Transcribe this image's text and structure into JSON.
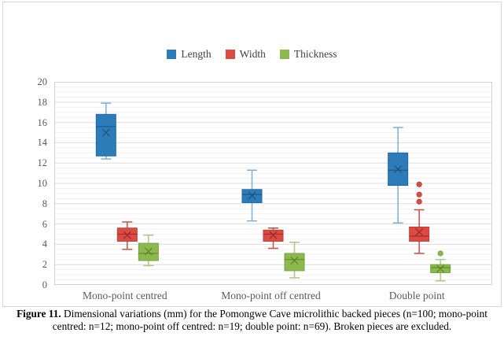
{
  "figure": {
    "caption_prefix": "Figure 11.",
    "caption_body": "Dimensional variations (mm) for the Pomongwe Cave microlithic backed pieces (n=100; mono-point centred: n=12; mono-point off centred: n=19; double point: n=69). Broken pieces are excluded."
  },
  "chart_data": {
    "type": "boxplot",
    "title": "",
    "xlabel": "",
    "ylabel": "",
    "categories": [
      "Mono-point centred",
      "Mono-point off centred",
      "Double point"
    ],
    "ylim": [
      0,
      20
    ],
    "y_ticks": [
      0,
      2,
      4,
      6,
      8,
      10,
      12,
      14,
      16,
      18,
      20
    ],
    "y_minor_step": 0.5,
    "grid": "horizontal major + minor",
    "legend_position": "top-center",
    "series": [
      {
        "name": "Length",
        "fill": "#2c7cba",
        "border": "#2368a2",
        "whisker": "#7fafd1",
        "accent": "#1d4f75",
        "boxes": [
          {
            "whisker_low": 12.4,
            "q1": 12.7,
            "median": 15.6,
            "q3": 16.8,
            "whisker_high": 17.9,
            "mean": 15.0,
            "outliers": []
          },
          {
            "whisker_low": 6.3,
            "q1": 8.1,
            "median": 8.9,
            "q3": 9.4,
            "whisker_high": 11.3,
            "mean": 8.8,
            "outliers": []
          },
          {
            "whisker_low": 6.1,
            "q1": 9.8,
            "median": 11.3,
            "q3": 13.0,
            "whisker_high": 15.5,
            "mean": 11.4,
            "outliers": []
          }
        ]
      },
      {
        "name": "Width",
        "fill": "#dd4a44",
        "border": "#bf3e3a",
        "whisker": "#c4504b",
        "accent": "#8f2a26",
        "boxes": [
          {
            "whisker_low": 3.5,
            "q1": 4.3,
            "median": 5.0,
            "q3": 5.6,
            "whisker_high": 6.2,
            "mean": 4.9,
            "outliers": []
          },
          {
            "whisker_low": 3.6,
            "q1": 4.3,
            "median": 5.0,
            "q3": 5.4,
            "whisker_high": 5.6,
            "mean": 4.9,
            "outliers": []
          },
          {
            "whisker_low": 3.1,
            "q1": 4.3,
            "median": 4.8,
            "q3": 5.7,
            "whisker_high": 7.4,
            "mean": 5.2,
            "outliers": [
              8.2,
              8.9,
              9.9
            ]
          }
        ]
      },
      {
        "name": "Thickness",
        "fill": "#8bb94e",
        "border": "#79a23f",
        "whisker": "#abc786",
        "accent": "#5c7e2d",
        "boxes": [
          {
            "whisker_low": 1.9,
            "q1": 2.4,
            "median": 3.1,
            "q3": 4.1,
            "whisker_high": 4.9,
            "mean": 3.3,
            "outliers": []
          },
          {
            "whisker_low": 0.7,
            "q1": 1.4,
            "median": 2.5,
            "q3": 3.1,
            "whisker_high": 4.2,
            "mean": 2.4,
            "outliers": []
          },
          {
            "whisker_low": 0.4,
            "q1": 1.2,
            "median": 1.7,
            "q3": 2.0,
            "whisker_high": 2.5,
            "mean": 1.6,
            "outliers": [
              3.1
            ]
          }
        ]
      }
    ],
    "colors": {
      "major_grid": "#dcdcdc",
      "minor_grid": "#f1f1f1",
      "plot_border": "#d2d2d2",
      "tick_text": "#595959"
    }
  }
}
